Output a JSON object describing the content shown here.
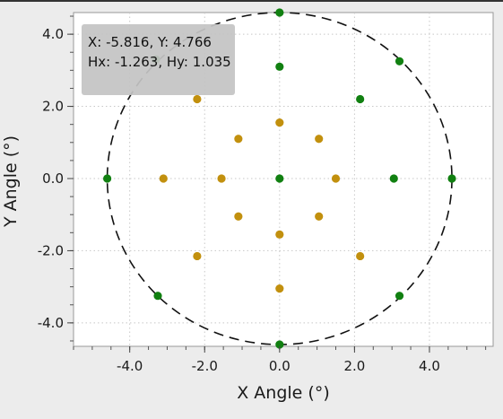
{
  "chart_data": {
    "type": "scatter",
    "xlabel": "X Angle (°)",
    "ylabel": "Y Angle (°)",
    "xlim": [
      -5.5,
      5.7
    ],
    "ylim": [
      -4.65,
      4.6
    ],
    "xticks": [
      -4,
      -2,
      0,
      2,
      4
    ],
    "yticks": [
      -4,
      -2,
      0,
      2,
      4
    ],
    "xtick_labels": [
      "-4.0",
      "-2.0",
      "0.0",
      "2.0",
      "4.0"
    ],
    "ytick_labels": [
      "4.0",
      "2.0",
      "0.0",
      "-2.0",
      "-4.0"
    ],
    "grid": true,
    "circle": {
      "center": [
        0,
        0
      ],
      "radius": 4.6,
      "style": "dashed"
    },
    "series": [
      {
        "color": "#118011",
        "points": [
          [
            0,
            4.6
          ],
          [
            0,
            3.1
          ],
          [
            0,
            0
          ],
          [
            0,
            -4.6
          ],
          [
            3.2,
            3.25
          ],
          [
            -3.3,
            3.3
          ],
          [
            2.15,
            2.2
          ],
          [
            -4.6,
            0
          ],
          [
            3.05,
            0
          ],
          [
            4.6,
            0
          ],
          [
            -3.25,
            -3.25
          ],
          [
            3.2,
            -3.25
          ]
        ]
      },
      {
        "color": "#c2900e",
        "points": [
          [
            0,
            1.55
          ],
          [
            0,
            -1.55
          ],
          [
            0,
            -3.05
          ],
          [
            -2.2,
            2.2
          ],
          [
            -1.1,
            1.1
          ],
          [
            1.05,
            1.1
          ],
          [
            -3.1,
            0
          ],
          [
            -1.55,
            0
          ],
          [
            1.5,
            0
          ],
          [
            -1.1,
            -1.05
          ],
          [
            1.05,
            -1.05
          ],
          [
            -2.2,
            -2.15
          ],
          [
            2.15,
            -2.15
          ]
        ]
      }
    ],
    "tooltip": {
      "line1": "X: -5.816,  Y: 4.766",
      "line2": "Hx: -1.263, Hy: 1.035"
    }
  }
}
